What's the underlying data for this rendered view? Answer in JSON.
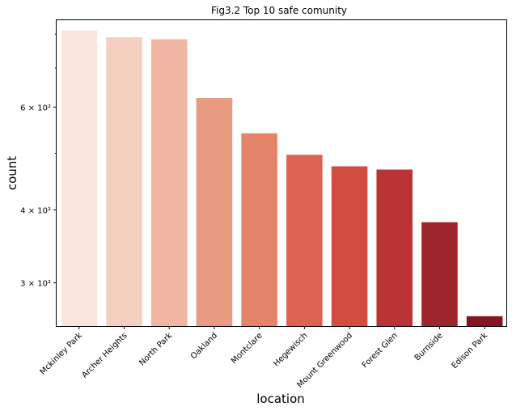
{
  "chart_data": {
    "type": "bar",
    "title": "Fig3.2 Top 10 safe comunity",
    "xlabel": "location",
    "ylabel": "count",
    "yscale": "log",
    "ylim": [
      253,
      845
    ],
    "categories": [
      "Mckinley Park",
      "Archer Heights",
      "North Park",
      "Oakland",
      "Montclare",
      "Hegewisch",
      "Mount Greenwood",
      "Forest Glen",
      "Burnside",
      "Edison Park"
    ],
    "values": [
      812,
      790,
      784,
      622,
      541,
      497,
      475,
      469,
      381,
      263
    ],
    "colors": [
      "#fbe6de",
      "#f5d0c0",
      "#f0b6a2",
      "#e99b82",
      "#e58469",
      "#de6353",
      "#d24c40",
      "#bb3435",
      "#9d252b",
      "#85151f"
    ],
    "yticks": [
      {
        "value": 300,
        "label": "3 × 10²"
      },
      {
        "value": 400,
        "label": "4 × 10²"
      },
      {
        "value": 600,
        "label": "6 × 10²"
      }
    ],
    "minor_ticks": [
      500,
      700,
      800
    ],
    "grid": false,
    "legend": "none"
  }
}
